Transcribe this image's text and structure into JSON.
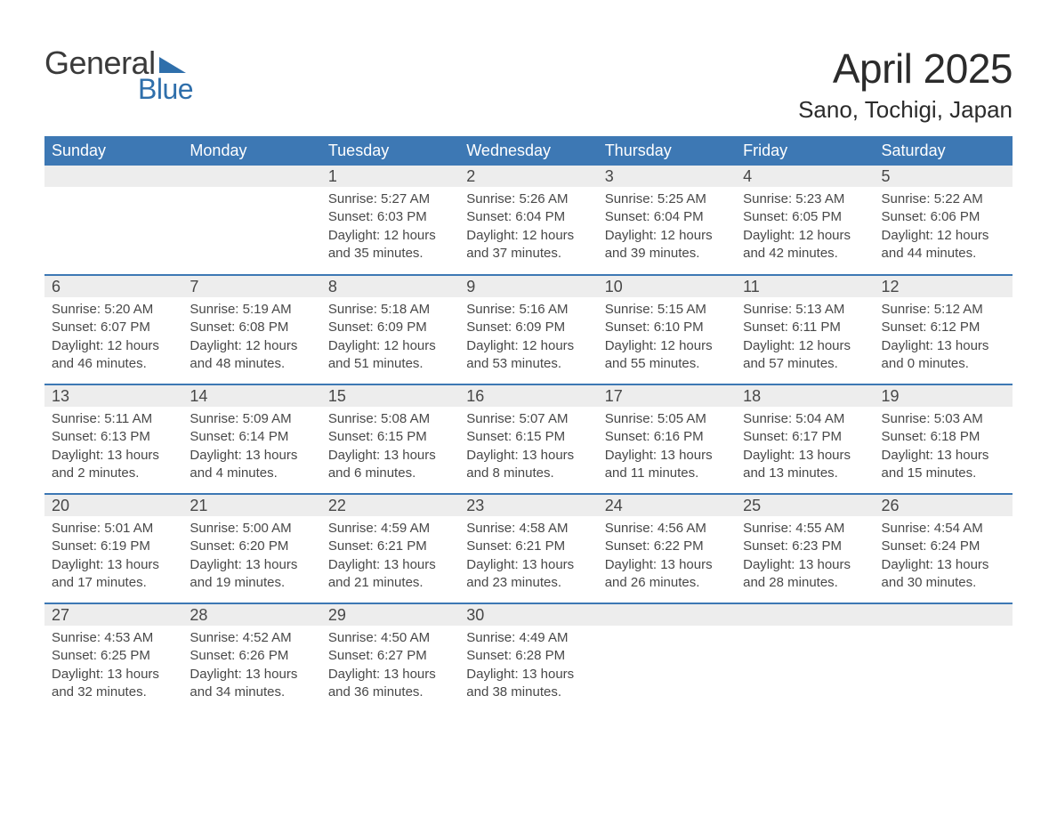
{
  "colors": {
    "header_bg": "#3d78b4",
    "header_text": "#ffffff",
    "row_border": "#3d78b4",
    "daynum_bg": "#ededed",
    "daynum_text": "#474747",
    "body_text": "#484848",
    "logo_blue": "#2f6fab",
    "page_bg": "#ffffff",
    "title_text": "#2b2b2b"
  },
  "typography": {
    "title_fontsize": 46,
    "subtitle_fontsize": 26,
    "weekday_fontsize": 18,
    "daynum_fontsize": 18,
    "body_fontsize": 15,
    "font_family": "Arial"
  },
  "logo": {
    "text_general": "General",
    "text_blue": "Blue",
    "shape_color": "#2f6fab"
  },
  "title": "April 2025",
  "subtitle": "Sano, Tochigi, Japan",
  "weekdays": [
    "Sunday",
    "Monday",
    "Tuesday",
    "Wednesday",
    "Thursday",
    "Friday",
    "Saturday"
  ],
  "weeks": [
    [
      null,
      null,
      {
        "n": "1",
        "sunrise": "Sunrise: 5:27 AM",
        "sunset": "Sunset: 6:03 PM",
        "daylight": "Daylight: 12 hours and 35 minutes."
      },
      {
        "n": "2",
        "sunrise": "Sunrise: 5:26 AM",
        "sunset": "Sunset: 6:04 PM",
        "daylight": "Daylight: 12 hours and 37 minutes."
      },
      {
        "n": "3",
        "sunrise": "Sunrise: 5:25 AM",
        "sunset": "Sunset: 6:04 PM",
        "daylight": "Daylight: 12 hours and 39 minutes."
      },
      {
        "n": "4",
        "sunrise": "Sunrise: 5:23 AM",
        "sunset": "Sunset: 6:05 PM",
        "daylight": "Daylight: 12 hours and 42 minutes."
      },
      {
        "n": "5",
        "sunrise": "Sunrise: 5:22 AM",
        "sunset": "Sunset: 6:06 PM",
        "daylight": "Daylight: 12 hours and 44 minutes."
      }
    ],
    [
      {
        "n": "6",
        "sunrise": "Sunrise: 5:20 AM",
        "sunset": "Sunset: 6:07 PM",
        "daylight": "Daylight: 12 hours and 46 minutes."
      },
      {
        "n": "7",
        "sunrise": "Sunrise: 5:19 AM",
        "sunset": "Sunset: 6:08 PM",
        "daylight": "Daylight: 12 hours and 48 minutes."
      },
      {
        "n": "8",
        "sunrise": "Sunrise: 5:18 AM",
        "sunset": "Sunset: 6:09 PM",
        "daylight": "Daylight: 12 hours and 51 minutes."
      },
      {
        "n": "9",
        "sunrise": "Sunrise: 5:16 AM",
        "sunset": "Sunset: 6:09 PM",
        "daylight": "Daylight: 12 hours and 53 minutes."
      },
      {
        "n": "10",
        "sunrise": "Sunrise: 5:15 AM",
        "sunset": "Sunset: 6:10 PM",
        "daylight": "Daylight: 12 hours and 55 minutes."
      },
      {
        "n": "11",
        "sunrise": "Sunrise: 5:13 AM",
        "sunset": "Sunset: 6:11 PM",
        "daylight": "Daylight: 12 hours and 57 minutes."
      },
      {
        "n": "12",
        "sunrise": "Sunrise: 5:12 AM",
        "sunset": "Sunset: 6:12 PM",
        "daylight": "Daylight: 13 hours and 0 minutes."
      }
    ],
    [
      {
        "n": "13",
        "sunrise": "Sunrise: 5:11 AM",
        "sunset": "Sunset: 6:13 PM",
        "daylight": "Daylight: 13 hours and 2 minutes."
      },
      {
        "n": "14",
        "sunrise": "Sunrise: 5:09 AM",
        "sunset": "Sunset: 6:14 PM",
        "daylight": "Daylight: 13 hours and 4 minutes."
      },
      {
        "n": "15",
        "sunrise": "Sunrise: 5:08 AM",
        "sunset": "Sunset: 6:15 PM",
        "daylight": "Daylight: 13 hours and 6 minutes."
      },
      {
        "n": "16",
        "sunrise": "Sunrise: 5:07 AM",
        "sunset": "Sunset: 6:15 PM",
        "daylight": "Daylight: 13 hours and 8 minutes."
      },
      {
        "n": "17",
        "sunrise": "Sunrise: 5:05 AM",
        "sunset": "Sunset: 6:16 PM",
        "daylight": "Daylight: 13 hours and 11 minutes."
      },
      {
        "n": "18",
        "sunrise": "Sunrise: 5:04 AM",
        "sunset": "Sunset: 6:17 PM",
        "daylight": "Daylight: 13 hours and 13 minutes."
      },
      {
        "n": "19",
        "sunrise": "Sunrise: 5:03 AM",
        "sunset": "Sunset: 6:18 PM",
        "daylight": "Daylight: 13 hours and 15 minutes."
      }
    ],
    [
      {
        "n": "20",
        "sunrise": "Sunrise: 5:01 AM",
        "sunset": "Sunset: 6:19 PM",
        "daylight": "Daylight: 13 hours and 17 minutes."
      },
      {
        "n": "21",
        "sunrise": "Sunrise: 5:00 AM",
        "sunset": "Sunset: 6:20 PM",
        "daylight": "Daylight: 13 hours and 19 minutes."
      },
      {
        "n": "22",
        "sunrise": "Sunrise: 4:59 AM",
        "sunset": "Sunset: 6:21 PM",
        "daylight": "Daylight: 13 hours and 21 minutes."
      },
      {
        "n": "23",
        "sunrise": "Sunrise: 4:58 AM",
        "sunset": "Sunset: 6:21 PM",
        "daylight": "Daylight: 13 hours and 23 minutes."
      },
      {
        "n": "24",
        "sunrise": "Sunrise: 4:56 AM",
        "sunset": "Sunset: 6:22 PM",
        "daylight": "Daylight: 13 hours and 26 minutes."
      },
      {
        "n": "25",
        "sunrise": "Sunrise: 4:55 AM",
        "sunset": "Sunset: 6:23 PM",
        "daylight": "Daylight: 13 hours and 28 minutes."
      },
      {
        "n": "26",
        "sunrise": "Sunrise: 4:54 AM",
        "sunset": "Sunset: 6:24 PM",
        "daylight": "Daylight: 13 hours and 30 minutes."
      }
    ],
    [
      {
        "n": "27",
        "sunrise": "Sunrise: 4:53 AM",
        "sunset": "Sunset: 6:25 PM",
        "daylight": "Daylight: 13 hours and 32 minutes."
      },
      {
        "n": "28",
        "sunrise": "Sunrise: 4:52 AM",
        "sunset": "Sunset: 6:26 PM",
        "daylight": "Daylight: 13 hours and 34 minutes."
      },
      {
        "n": "29",
        "sunrise": "Sunrise: 4:50 AM",
        "sunset": "Sunset: 6:27 PM",
        "daylight": "Daylight: 13 hours and 36 minutes."
      },
      {
        "n": "30",
        "sunrise": "Sunrise: 4:49 AM",
        "sunset": "Sunset: 6:28 PM",
        "daylight": "Daylight: 13 hours and 38 minutes."
      },
      null,
      null,
      null
    ]
  ]
}
